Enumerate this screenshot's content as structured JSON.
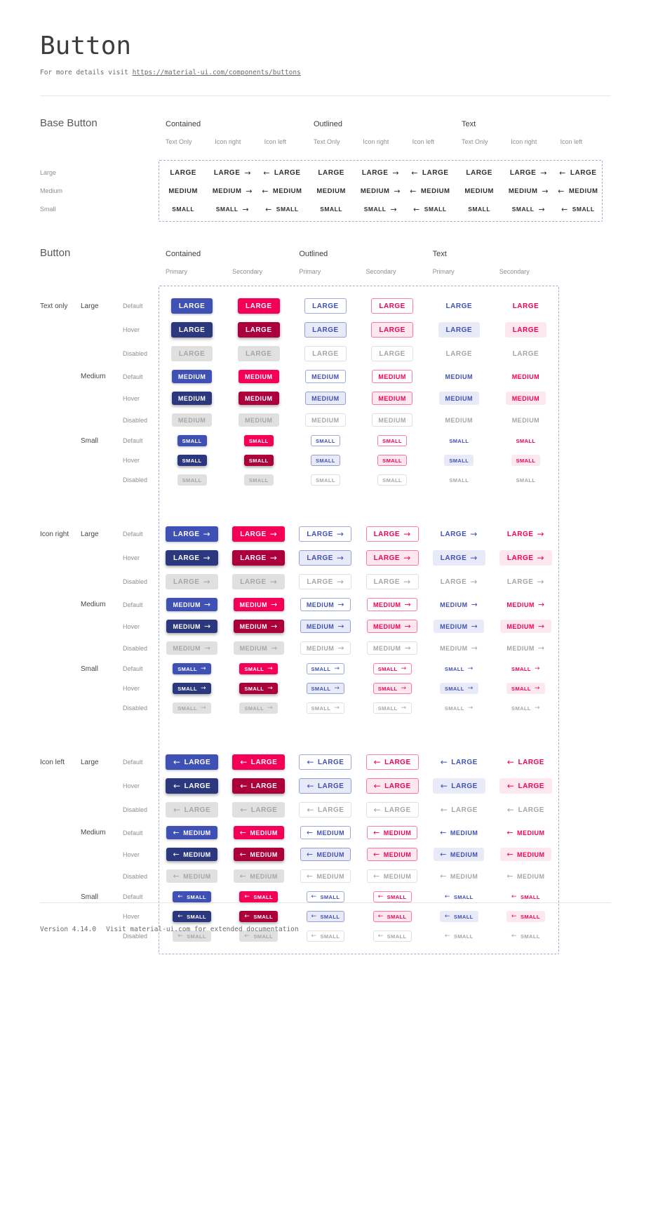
{
  "page": {
    "title": "Button",
    "subtitle_prefix": "For more details visit ",
    "subtitle_link": "https://material-ui.com/components/buttons",
    "footer_version": "Version 4.14.0",
    "footer_note": "Visit material-ui.com for extended documentation"
  },
  "icons": {
    "arrow_right": "→",
    "arrow_left": "←"
  },
  "colors": {
    "primary": "#3f51b5",
    "primary_dark": "#2c387e",
    "secondary": "#f50057",
    "secondary_dark": "#ab003c",
    "disabled_bg": "#e0e0e0",
    "disabled_text": "#a6a6a6",
    "outline_primary": "rgba(63,81,181,0.5)",
    "outline_secondary": "rgba(245,0,87,0.5)",
    "outline_disabled": "rgba(0,0,0,0.12)",
    "hover_bg_primary": "#e8ebf7",
    "hover_bg_secondary": "#fee8f0",
    "dashed": "#a6abce",
    "divider": "#e6e6e6"
  },
  "base_section": {
    "title": "Base Button",
    "groups": [
      "Contained",
      "Outlined",
      "Text"
    ],
    "subcolumns": [
      "Text Only",
      "Icon right",
      "Icon left"
    ],
    "rows": [
      {
        "label": "Large",
        "text": "LARGE"
      },
      {
        "label": "Medium",
        "text": "MEDIUM"
      },
      {
        "label": "Small",
        "text": "SMALL"
      }
    ]
  },
  "button_section": {
    "title": "Button",
    "groups": [
      "Contained",
      "Outlined",
      "Text"
    ],
    "subcolumns": [
      "Primary",
      "Secondary"
    ],
    "icon_groups": [
      {
        "label": "Text only",
        "icon": "none"
      },
      {
        "label": "Icon right",
        "icon": "right"
      },
      {
        "label": "Icon left",
        "icon": "left"
      }
    ],
    "sizes": [
      {
        "label": "Large",
        "text": "LARGE"
      },
      {
        "label": "Medium",
        "text": "MEDIUM"
      },
      {
        "label": "Small",
        "text": "SMALL"
      }
    ],
    "states": [
      "Default",
      "Hover",
      "Disabled"
    ],
    "variants": [
      "contained-primary",
      "contained-secondary",
      "outlined-primary",
      "outlined-secondary",
      "text-primary",
      "text-secondary"
    ]
  }
}
